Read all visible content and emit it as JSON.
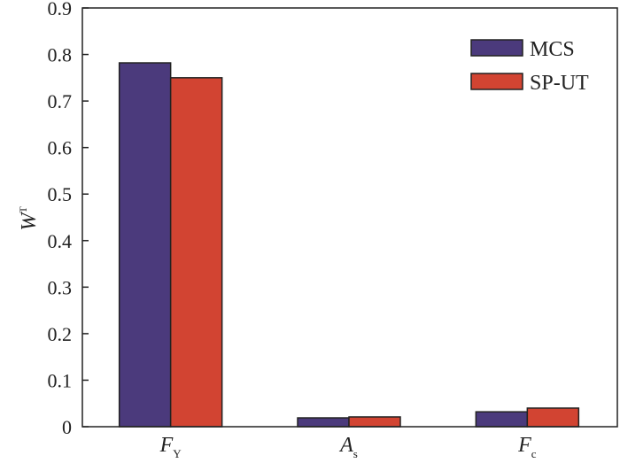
{
  "chart_data": {
    "type": "bar",
    "categories": [
      {
        "base": "F",
        "sub": "Y"
      },
      {
        "base": "A",
        "sub": "s"
      },
      {
        "base": "F",
        "sub": "c"
      }
    ],
    "series": [
      {
        "name": "MCS",
        "color": "#4b3a7c",
        "values": [
          0.782,
          0.019,
          0.032
        ]
      },
      {
        "name": "SP-UT",
        "color": "#d24432",
        "values": [
          0.75,
          0.021,
          0.04
        ]
      }
    ],
    "ylabel": {
      "base": "W",
      "sup": "T"
    },
    "xlabel": "",
    "ylim": [
      0,
      0.9
    ],
    "yticks": [
      "0",
      "0.1",
      "0.2",
      "0.3",
      "0.4",
      "0.5",
      "0.6",
      "0.7",
      "0.8",
      "0.9"
    ],
    "grid": false,
    "legend_position": "top-right"
  }
}
